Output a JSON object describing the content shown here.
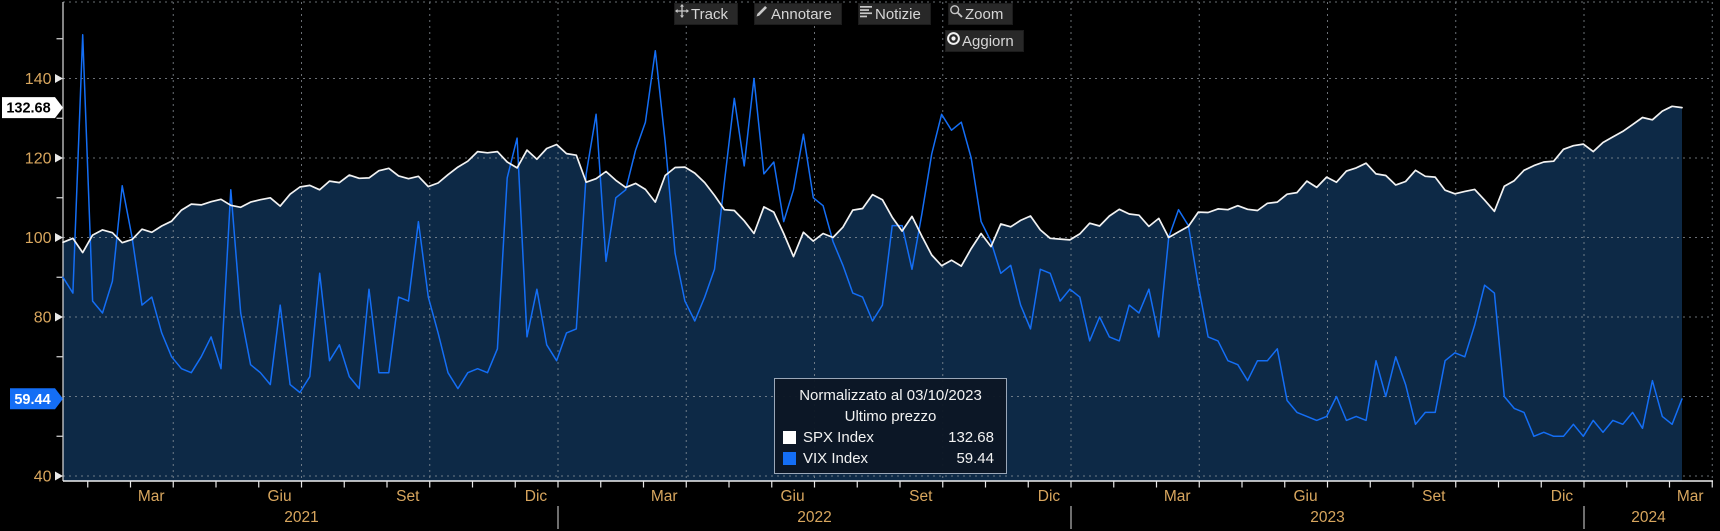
{
  "toolbar": {
    "buttons": [
      {
        "id": "track",
        "label": "Track"
      },
      {
        "id": "annotate",
        "label": "Annotare"
      },
      {
        "id": "news",
        "label": "Notizie"
      },
      {
        "id": "zoom",
        "label": "Zoom"
      }
    ],
    "refresh": {
      "label": "Aggiorn"
    }
  },
  "legend": {
    "title": "Normalizzato al 03/10/2023",
    "subtitle": "Ultimo prezzo",
    "entries": [
      {
        "name": "SPX Index",
        "value": "132.68",
        "color": "#ffffff"
      },
      {
        "name": "VIX Index",
        "value": "59.44",
        "color": "#146ef5"
      }
    ]
  },
  "axis": {
    "month_labels": [
      "Mar",
      "Giu",
      "Set",
      "Dic",
      "Mar",
      "Giu",
      "Set",
      "Dic",
      "Mar",
      "Giu",
      "Set",
      "Dic",
      "Mar"
    ],
    "year_labels": [
      "2021",
      "2022",
      "2023",
      "2024"
    ],
    "y_tick_labels": [
      "140",
      "120",
      "100",
      "80",
      "40"
    ],
    "price_tags": [
      {
        "label": "132.68",
        "value": 132.68,
        "bg": "#ffffff",
        "fg": "#000000"
      },
      {
        "label": "59.44",
        "value": 59.44,
        "bg": "#146ef5",
        "fg": "#ffffff"
      }
    ],
    "label_color": "#d8a65e"
  },
  "chart_data": {
    "type": "line",
    "title": "Normalizzato al 03/10/2023",
    "subtitle": "Ultimo prezzo",
    "x_axis": {
      "quarter_labels": [
        "Mar",
        "Giu",
        "Set",
        "Dic",
        "Mar",
        "Giu",
        "Set",
        "Dic",
        "Mar",
        "Giu",
        "Set",
        "Dic",
        "Mar"
      ],
      "year_labels": [
        "2021",
        "2022",
        "2023",
        "2024"
      ],
      "sampling": "weekly"
    },
    "ylim": [
      38.5,
      159
    ],
    "y_ticks_labeled": [
      140,
      120,
      100,
      80,
      40
    ],
    "y_ticks_unlabeled_grid": [
      140,
      120,
      100,
      80,
      60,
      40
    ],
    "y_ticks_minor": [
      150,
      130,
      110,
      90,
      70,
      50
    ],
    "grid": true,
    "series": [
      {
        "name": "SPX Index",
        "last": 132.68,
        "color": "#f2f2f2",
        "area_fill": "#0d2946",
        "values": [
          98.8,
          99.8,
          96.2,
          100.6,
          101.9,
          101.2,
          98.7,
          99.5,
          102.1,
          101.3,
          102.9,
          104.1,
          106.9,
          108.4,
          108.2,
          109,
          109.6,
          108.1,
          107.6,
          108.9,
          109.5,
          110,
          107.9,
          110.9,
          112.7,
          113.1,
          112,
          114.2,
          113.8,
          115.7,
          114.9,
          115,
          116.8,
          117.4,
          115.5,
          114.8,
          115.4,
          112.8,
          113.7,
          115.8,
          117.7,
          119.2,
          121.6,
          121.3,
          121.6,
          119,
          117.5,
          122,
          119.7,
          122.4,
          123.4,
          121.1,
          120.7,
          113.9,
          114.8,
          116.6,
          114.4,
          112.6,
          113.6,
          112.1,
          108.9,
          115.6,
          117.6,
          117.7,
          116.2,
          113.8,
          110.6,
          107,
          106.8,
          104.2,
          101,
          107.7,
          106.4,
          101,
          95.2,
          101.3,
          99.1,
          101,
          100,
          102.6,
          106.9,
          107.3,
          110.8,
          109.5,
          105.1,
          101.6,
          105.3,
          100.3,
          95.6,
          92.9,
          94.3,
          92.8,
          97.2,
          101,
          97.7,
          103.4,
          102.7,
          104.3,
          105.4,
          101.9,
          99.8,
          99.6,
          99.4,
          100.9,
          103.6,
          102.9,
          105.4,
          107.1,
          105.9,
          105.6,
          102.8,
          104.8,
          100,
          101.4,
          102.8,
          106.4,
          106.3,
          107.2,
          107,
          108,
          107.1,
          106.8,
          108.6,
          108.9,
          110.9,
          111.3,
          114.2,
          112.6,
          115.2,
          113.9,
          116.7,
          117.5,
          118.7,
          116,
          115.6,
          113.2,
          114.1,
          116.9,
          115.4,
          115.2,
          111.9,
          111,
          111.6,
          112.1,
          109.4,
          106.6,
          112.9,
          114.3,
          116.9,
          118.1,
          119,
          119.2,
          122.2,
          123.1,
          123.5,
          121.6,
          123.9,
          125.3,
          126.7,
          128.4,
          130.2,
          129.6,
          131.8,
          133,
          132.68
        ]
      },
      {
        "name": "VIX Index",
        "last": 59.44,
        "color": "#146ef5",
        "values": [
          90,
          86,
          151,
          84,
          81,
          89,
          113,
          100,
          83,
          85,
          76,
          70,
          67,
          66,
          70,
          75,
          67,
          112,
          81,
          68,
          66,
          63,
          83,
          63,
          61,
          65,
          91,
          69,
          73,
          65,
          62,
          87,
          66,
          66,
          85,
          84,
          104,
          85,
          76,
          66,
          62,
          66,
          67,
          66,
          72,
          115,
          125,
          75,
          87,
          73,
          69,
          76,
          77,
          116,
          131,
          94,
          110,
          112,
          122,
          129,
          147,
          124,
          96,
          84,
          79,
          85,
          92,
          114,
          135,
          118,
          140,
          116,
          119,
          104,
          112,
          126,
          110,
          108,
          99,
          93,
          86,
          85,
          79,
          83,
          103,
          103,
          92,
          106,
          121,
          131,
          127,
          129,
          120,
          104,
          99,
          91,
          93,
          83,
          77,
          92,
          91,
          84,
          87,
          85,
          74,
          80,
          75,
          74,
          83,
          81,
          87,
          75,
          100,
          107,
          103,
          88,
          75,
          74,
          69,
          68,
          64,
          69,
          69,
          72,
          59,
          56,
          55,
          54,
          55,
          60,
          54,
          55,
          54,
          69,
          60,
          70,
          63,
          53,
          56,
          56,
          69,
          71,
          70,
          78,
          88,
          86,
          60,
          57,
          56,
          50,
          51,
          50,
          50,
          53,
          50,
          54,
          51,
          54,
          53,
          56,
          52,
          64,
          55,
          53,
          59.4
        ]
      }
    ]
  }
}
